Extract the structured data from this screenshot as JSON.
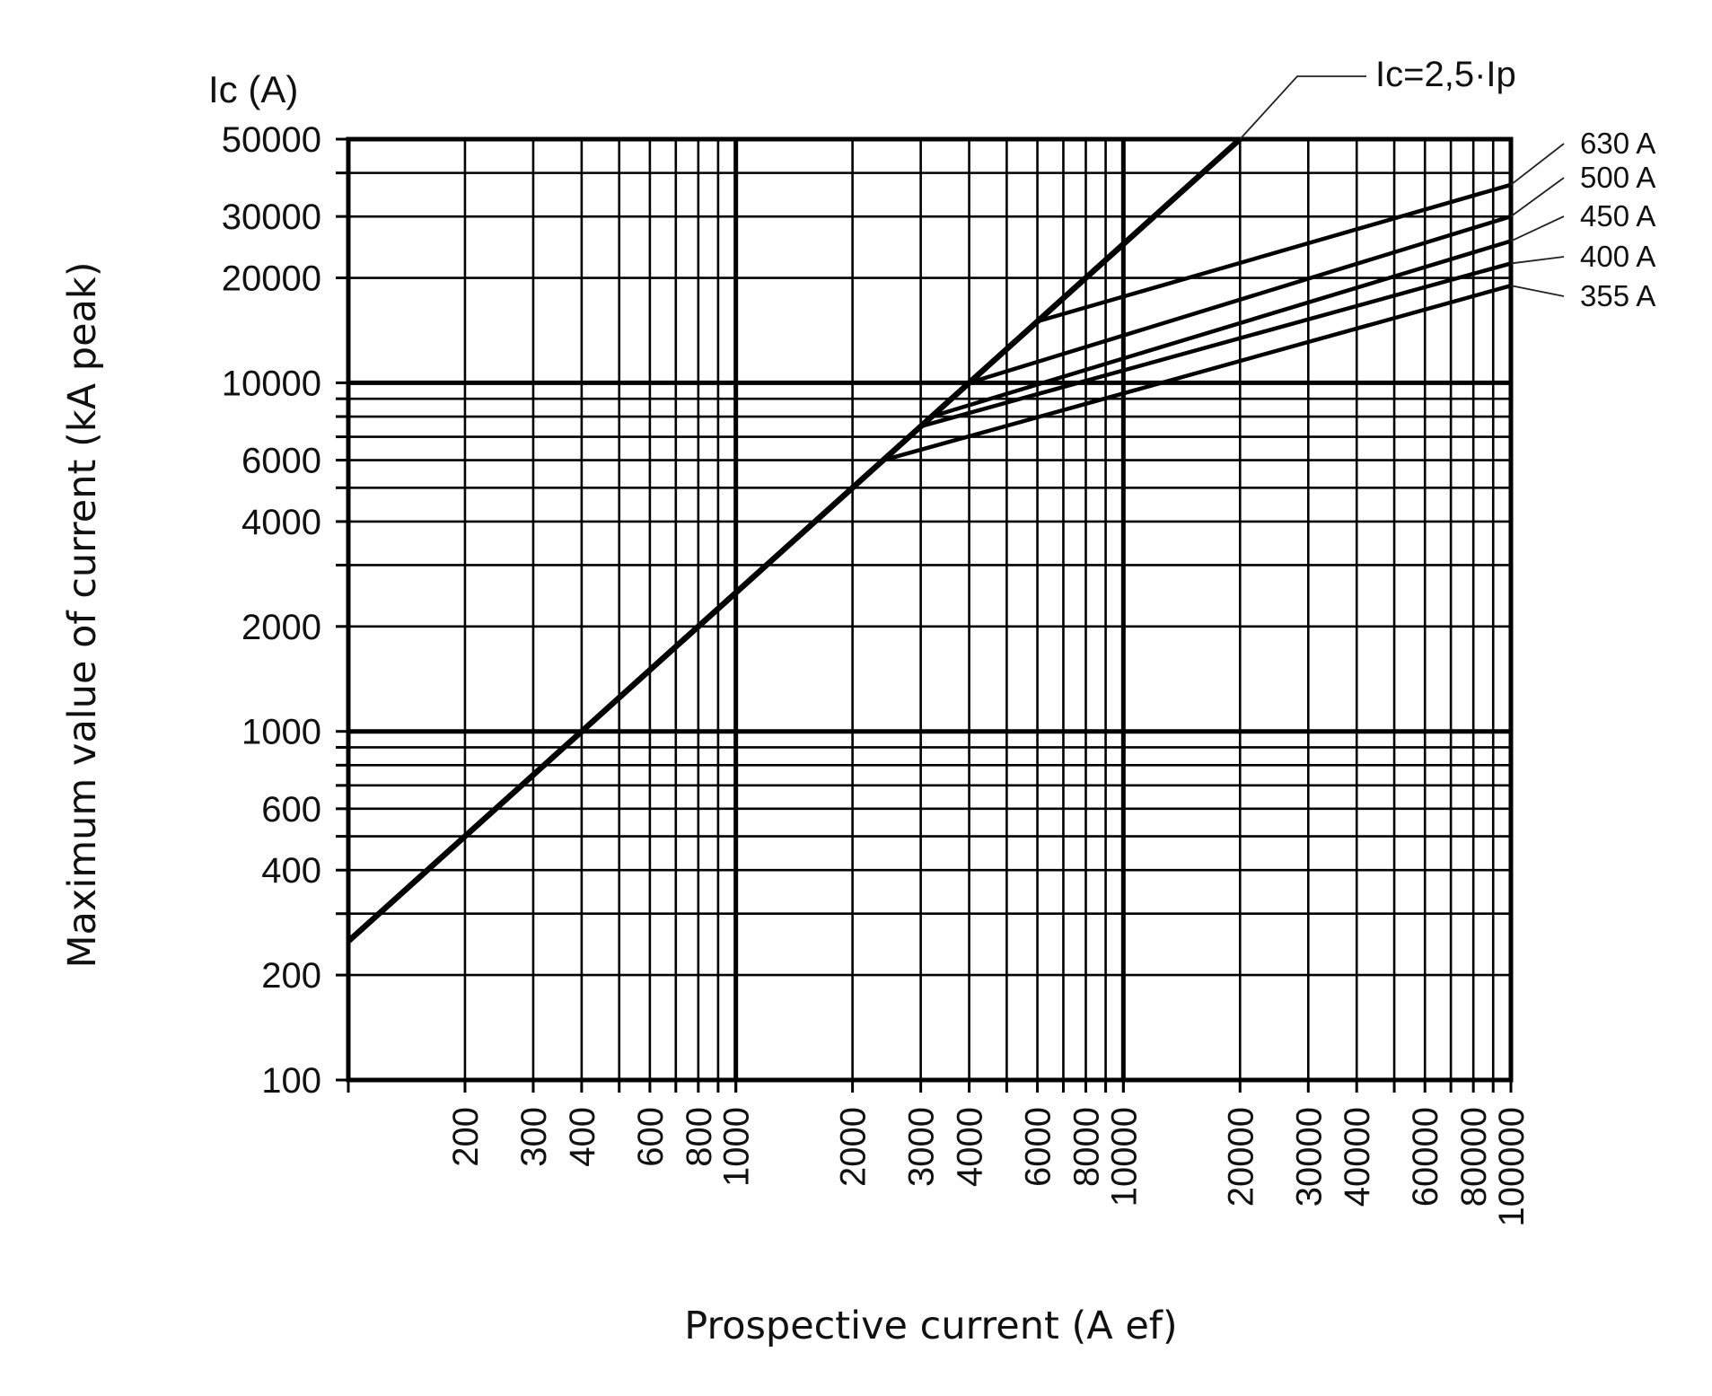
{
  "chart_data": {
    "type": "line",
    "title": "",
    "y_unit": "Ic (A)",
    "ylabel": "Maximum value of current (kA peak)",
    "xlabel": "Prospective current (A ef)",
    "xscale": "log",
    "yscale": "log",
    "xlim": [
      100,
      100000
    ],
    "ylim": [
      100,
      50000
    ],
    "grid": true,
    "x_ticks": [
      "200",
      "300",
      "400",
      "600",
      "800",
      "1000",
      "2000",
      "3000",
      "4000",
      "6000",
      "8000",
      "10000",
      "20000",
      "30000",
      "40000",
      "60000",
      "80000",
      "100000"
    ],
    "y_ticks": [
      "100",
      "200",
      "400",
      "600",
      "1000",
      "2000",
      "4000",
      "6000",
      "10000",
      "20000",
      "30000",
      "50000"
    ],
    "series": [
      {
        "name": "Ic=2,5·Ip",
        "x": [
          100,
          20000
        ],
        "y": [
          250,
          50000
        ]
      },
      {
        "name": "630 A",
        "x": [
          6000,
          100000
        ],
        "y": [
          15000,
          37000
        ]
      },
      {
        "name": "500 A",
        "x": [
          4000,
          100000
        ],
        "y": [
          10000,
          30000
        ]
      },
      {
        "name": "450 A",
        "x": [
          3200,
          100000
        ],
        "y": [
          8000,
          25500
        ]
      },
      {
        "name": "400 A",
        "x": [
          3000,
          100000
        ],
        "y": [
          7500,
          22000
        ]
      },
      {
        "name": "355 A",
        "x": [
          2400,
          100000
        ],
        "y": [
          6000,
          19000
        ]
      }
    ]
  }
}
